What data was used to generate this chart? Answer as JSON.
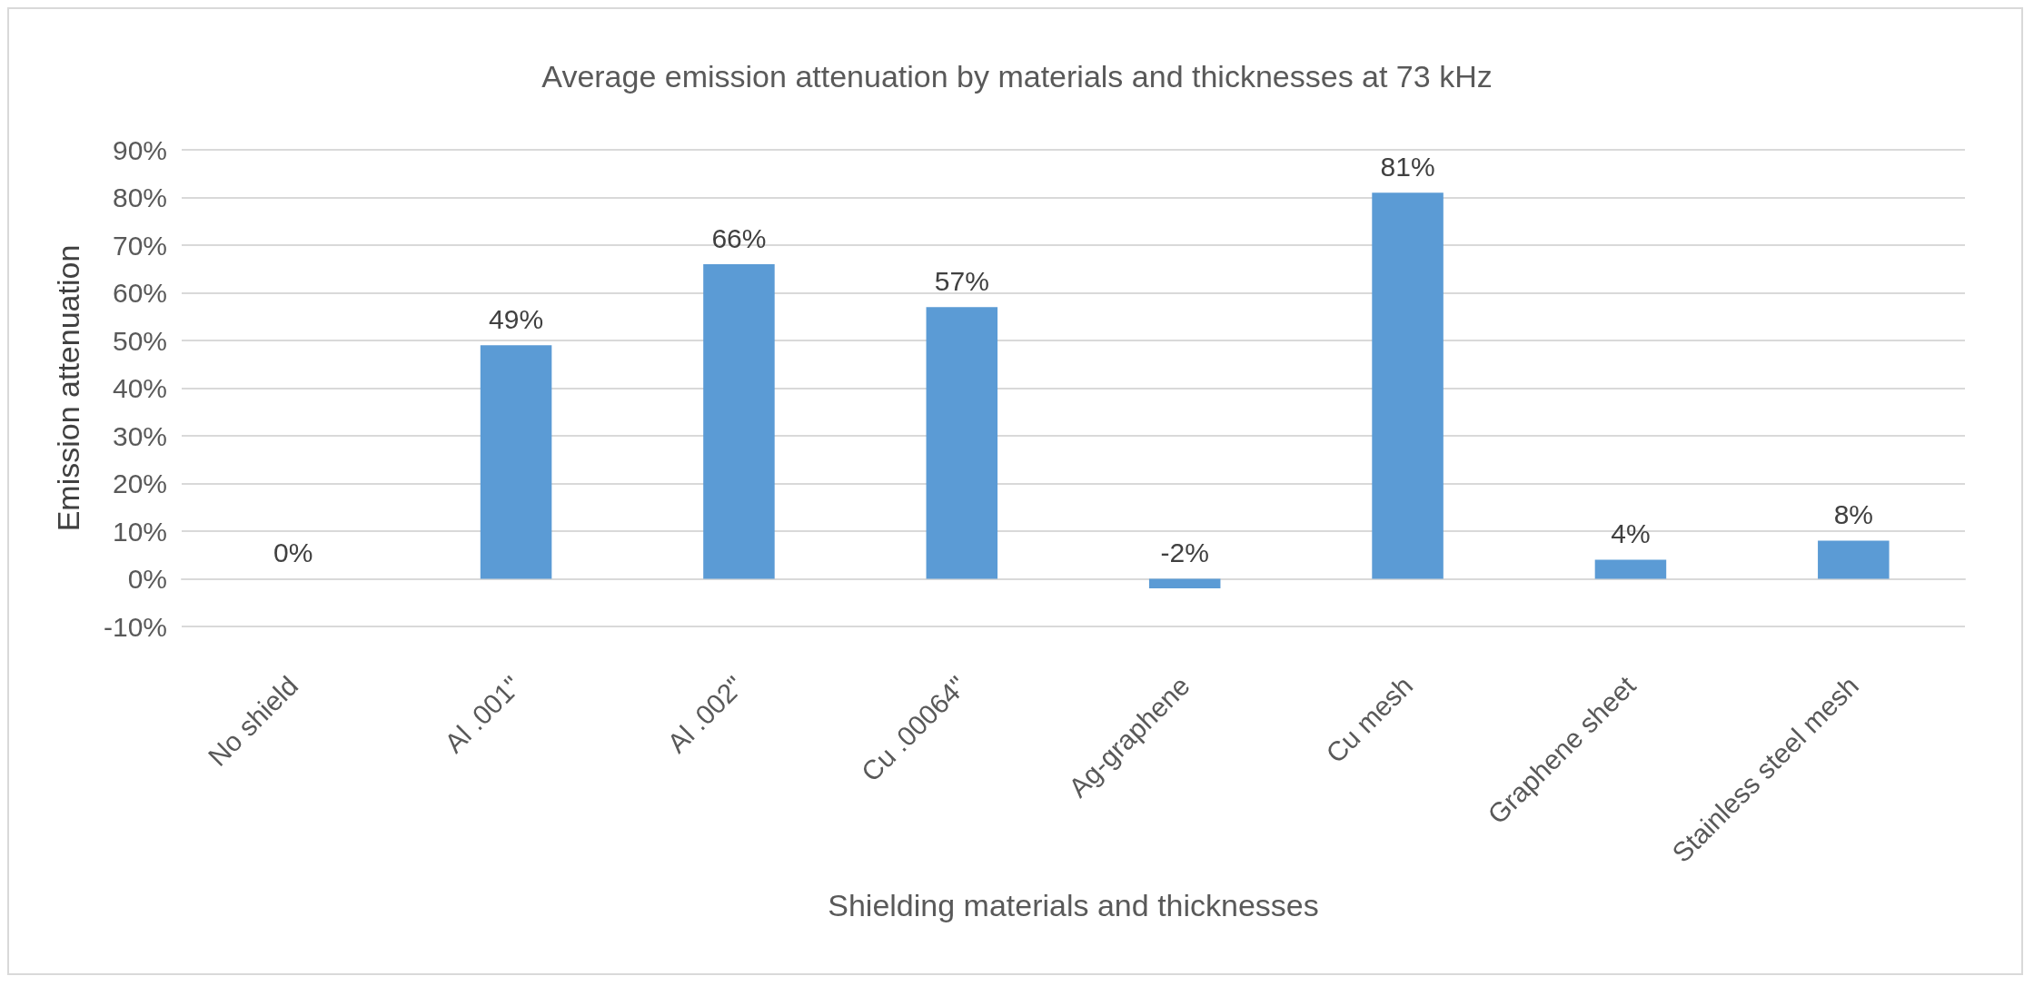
{
  "chart_data": {
    "type": "bar",
    "title": "Average emission attenuation by materials and thicknesses at 73 kHz",
    "xlabel": "Shielding materials and thicknesses",
    "ylabel": "Emission attenuation",
    "categories": [
      "No shield",
      "Al .001\"",
      "Al .002\"",
      "Cu .00064\"",
      "Ag-graphene",
      "Cu mesh",
      "Graphene sheet",
      "Stainless steel mesh"
    ],
    "values": [
      0,
      49,
      66,
      57,
      -2,
      81,
      4,
      8
    ],
    "value_labels": [
      "0%",
      "49%",
      "66%",
      "57%",
      "-2%",
      "81%",
      "4%",
      "8%"
    ],
    "color": "#5b9bd5",
    "ylim": [
      -10,
      90
    ],
    "yticks": [
      {
        "value": -10,
        "label": "-10%"
      },
      {
        "value": 0,
        "label": "0%"
      },
      {
        "value": 10,
        "label": "10%"
      },
      {
        "value": 20,
        "label": "20%"
      },
      {
        "value": 30,
        "label": "30%"
      },
      {
        "value": 40,
        "label": "40%"
      },
      {
        "value": 50,
        "label": "50%"
      },
      {
        "value": 60,
        "label": "60%"
      },
      {
        "value": 70,
        "label": "70%"
      },
      {
        "value": 80,
        "label": "80%"
      },
      {
        "value": 90,
        "label": "90%"
      }
    ],
    "grid": "y"
  }
}
